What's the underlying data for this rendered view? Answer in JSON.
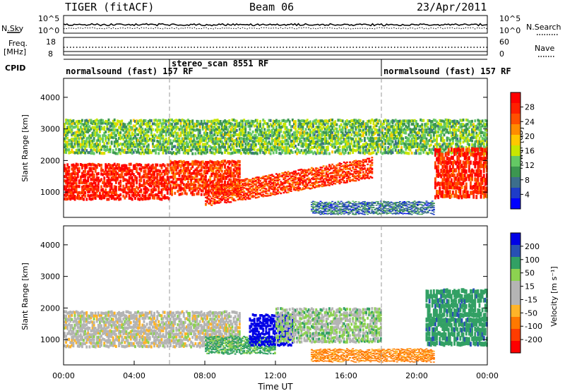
{
  "header": {
    "title": "TIGER (fitACF)",
    "beam": "Beam 06",
    "date": "23/Apr/2011"
  },
  "top_panel": {
    "left_label": "N.Sky",
    "right_label": "N.Search",
    "left_ticks": [
      "10^5",
      "10^0"
    ],
    "right_ticks": [
      "10^5",
      "10^0"
    ]
  },
  "freq_panel": {
    "left_label_top": "Freq.",
    "left_label_bottom": "[MHz]",
    "right_label": "Nave",
    "left_ticks": [
      "18",
      "8"
    ],
    "right_ticks": [
      "60",
      "0"
    ]
  },
  "cpid": {
    "label": "CPID",
    "segments": [
      {
        "start": 0,
        "end": 6,
        "text": "normalsound (fast) 157 RF",
        "row": "low"
      },
      {
        "start": 6,
        "end": 18,
        "text": "stereo_scan 8551 RF",
        "row": "high"
      },
      {
        "start": 18,
        "end": 24,
        "text": "normalsound (fast) 157 RF",
        "row": "low"
      }
    ]
  },
  "power_colorbar": {
    "label": "Power [dB]",
    "ticks": [
      "28",
      "24",
      "20",
      "16",
      "12",
      "8",
      "4"
    ],
    "colors": [
      "#ff0000",
      "#ff2000",
      "#ff5000",
      "#ff8c00",
      "#ffc800",
      "#c8e600",
      "#64c864",
      "#3c9650",
      "#3c6e8c",
      "#1e3cc8",
      "#0000ff"
    ]
  },
  "velocity_colorbar": {
    "label": "Velocity [m s⁻¹]",
    "ticks": [
      "200",
      "100",
      "50",
      "15",
      "-15",
      "-50",
      "-100",
      "-200"
    ],
    "colors": [
      "#0000e6",
      "#2850b4",
      "#32a064",
      "#8cd250",
      "#b4b4b4",
      "#b4b4b4",
      "#ffb428",
      "#ff7800",
      "#ff3c00",
      "#ff0000"
    ]
  },
  "chart_data": [
    {
      "type": "heatmap",
      "title": "Power",
      "ylabel": "Slant Range [km]",
      "yticks": [
        "1000",
        "2000",
        "3000",
        "4000"
      ],
      "ylim": [
        200,
        4600
      ],
      "xlim": [
        0,
        24
      ],
      "xlabel": "",
      "regions": [
        {
          "name": "main-band-early",
          "t": [
            0,
            6
          ],
          "range": [
            750,
            1900
          ],
          "power": 28
        },
        {
          "name": "main-band-mid",
          "t": [
            6,
            10
          ],
          "range": [
            900,
            2000
          ],
          "power": 26
        },
        {
          "name": "rising-band",
          "t": [
            8,
            17.5
          ],
          "range": [
            550,
            2100
          ],
          "power": 26
        },
        {
          "name": "upper-scatter",
          "t": [
            0,
            24
          ],
          "range": [
            2200,
            3300
          ],
          "power": 12
        },
        {
          "name": "low-range-echoes",
          "t": [
            14,
            21
          ],
          "range": [
            300,
            700
          ],
          "power": 6
        },
        {
          "name": "late-band",
          "t": [
            21,
            24
          ],
          "range": [
            800,
            2400
          ],
          "power": 27
        }
      ]
    },
    {
      "type": "heatmap",
      "title": "Velocity",
      "ylabel": "Slant Range [km]",
      "yticks": [
        "1000",
        "2000",
        "3000",
        "4000"
      ],
      "ylim": [
        200,
        4600
      ],
      "xlim": [
        0,
        24
      ],
      "xlabel": "Time UT",
      "xticks": [
        "00:00",
        "04:00",
        "08:00",
        "12:00",
        "16:00",
        "20:00",
        "00:00"
      ],
      "regions": [
        {
          "name": "ground-scatter",
          "t": [
            0,
            10
          ],
          "range": [
            750,
            1900
          ],
          "velocity": 0
        },
        {
          "name": "slow-positive",
          "t": [
            8,
            12
          ],
          "range": [
            550,
            1100
          ],
          "velocity": 40
        },
        {
          "name": "fast-positive",
          "t": [
            10.5,
            13
          ],
          "range": [
            800,
            1800
          ],
          "velocity": 200
        },
        {
          "name": "band-mixed",
          "t": [
            12,
            18
          ],
          "range": [
            900,
            2000
          ],
          "velocity": 15
        },
        {
          "name": "negative-low",
          "t": [
            14,
            21
          ],
          "range": [
            300,
            700
          ],
          "velocity": -60
        },
        {
          "name": "late-positive",
          "t": [
            20.5,
            24
          ],
          "range": [
            800,
            2600
          ],
          "velocity": 60
        }
      ]
    }
  ]
}
